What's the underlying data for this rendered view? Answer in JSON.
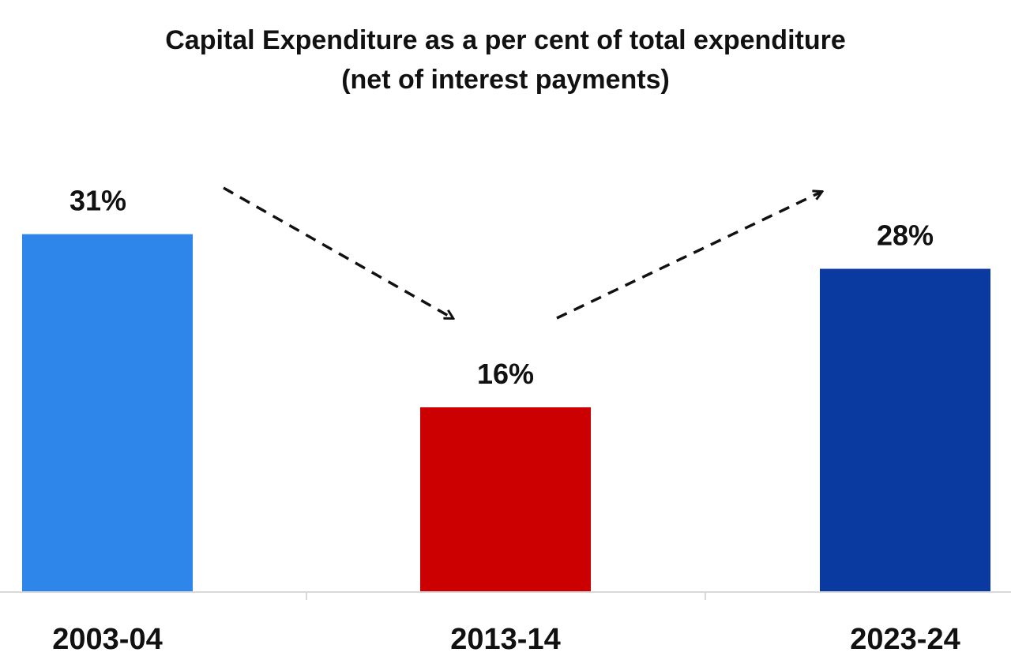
{
  "chart_data": {
    "type": "bar",
    "title_lines": [
      "Capital Expenditure as a per cent of  total expenditure",
      "(net of interest payments)"
    ],
    "categories": [
      "2003-04",
      "2013-14",
      "2023-24"
    ],
    "values": [
      31,
      16,
      28
    ],
    "value_labels": [
      "31%",
      "16%",
      "28%"
    ],
    "bar_colors": [
      "#2f86ea",
      "#cc0000",
      "#0a3aa0"
    ],
    "ylim": [
      0,
      40
    ],
    "grid": false,
    "legend": "none",
    "annotations": [
      {
        "type": "dashed-arrow",
        "direction": "down",
        "from": "2003-04",
        "to": "2013-14"
      },
      {
        "type": "dashed-arrow",
        "direction": "up",
        "from": "2013-14",
        "to": "2023-24"
      }
    ]
  }
}
